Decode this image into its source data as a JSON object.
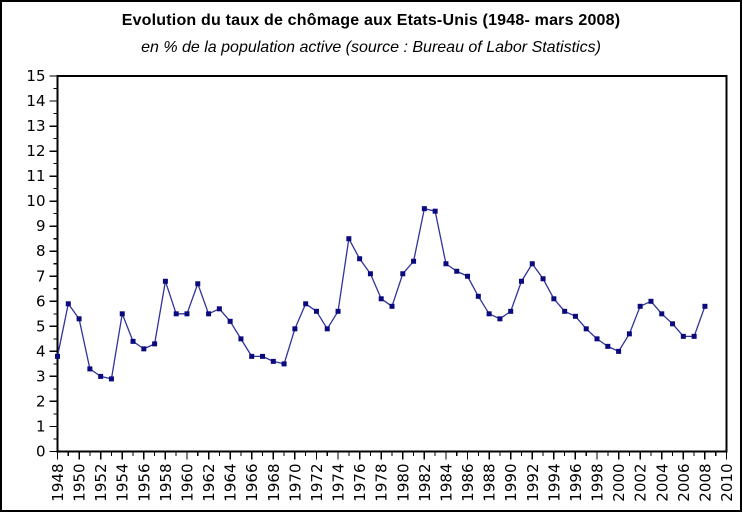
{
  "chart": {
    "title": "Evolution du taux de chômage aux Etats-Unis (1948- mars 2008)",
    "subtitle": "en % de la population active (source : Bureau of Labor Statistics)"
  },
  "chart_data": {
    "type": "line",
    "title": "Evolution du taux de chômage aux Etats-Unis (1948- mars 2008)",
    "subtitle": "en % de la population active (source : Bureau of Labor Statistics)",
    "xlabel": "",
    "ylabel": "",
    "x": [
      1948,
      1949,
      1950,
      1951,
      1952,
      1953,
      1954,
      1955,
      1956,
      1957,
      1958,
      1959,
      1960,
      1961,
      1962,
      1963,
      1964,
      1965,
      1966,
      1967,
      1968,
      1969,
      1970,
      1971,
      1972,
      1973,
      1974,
      1975,
      1976,
      1977,
      1978,
      1979,
      1980,
      1981,
      1982,
      1983,
      1984,
      1985,
      1986,
      1987,
      1988,
      1989,
      1990,
      1991,
      1992,
      1993,
      1994,
      1995,
      1996,
      1997,
      1998,
      1999,
      2000,
      2001,
      2002,
      2003,
      2004,
      2005,
      2006,
      2007,
      2008
    ],
    "values": [
      3.8,
      5.9,
      5.3,
      3.3,
      3.0,
      2.9,
      5.5,
      4.4,
      4.1,
      4.3,
      6.8,
      5.5,
      5.5,
      6.7,
      5.5,
      5.7,
      5.2,
      4.5,
      3.8,
      3.8,
      3.6,
      3.5,
      4.9,
      5.9,
      5.6,
      4.9,
      5.6,
      8.5,
      7.7,
      7.1,
      6.1,
      5.8,
      7.1,
      7.6,
      9.7,
      9.6,
      7.5,
      7.2,
      7.0,
      6.2,
      5.5,
      5.3,
      5.6,
      6.8,
      7.5,
      6.9,
      6.1,
      5.6,
      5.4,
      4.9,
      4.5,
      4.2,
      4.0,
      4.7,
      5.8,
      6.0,
      5.5,
      5.1,
      4.6,
      4.6,
      5.8
    ],
    "xlim": [
      1948,
      2010
    ],
    "ylim": [
      0,
      15
    ],
    "x_major_tick_step": 2,
    "x_minor_tick_step": 1,
    "y_major_tick_step": 1,
    "y_minor_tick_step": 0.5,
    "grid": false,
    "legend": null,
    "x_tick_labels_rotated_degrees": -90,
    "line_color": "#32329B",
    "marker_color": "#0A0A7D",
    "marker": "square",
    "axis_color": "#000000"
  }
}
